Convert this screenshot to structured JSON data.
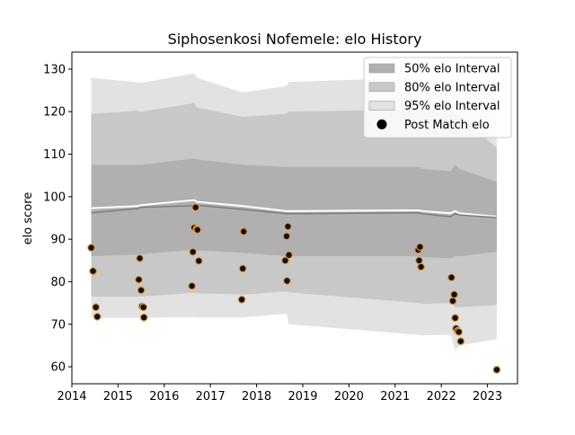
{
  "chart_data": {
    "type": "line",
    "title": "Siphosenkosi Nofemele: elo History",
    "xlabel": "",
    "ylabel": "elo score",
    "xlim": [
      2014.0,
      2023.65
    ],
    "ylim": [
      56,
      134
    ],
    "xticks": [
      2014,
      2015,
      2016,
      2017,
      2018,
      2019,
      2020,
      2021,
      2022,
      2023
    ],
    "yticks": [
      60,
      70,
      80,
      90,
      100,
      110,
      120,
      130
    ],
    "grid": false,
    "legend_position": "top-right",
    "legend": [
      {
        "label": "50% elo Interval",
        "kind": "patch",
        "color": "#b0b0b0"
      },
      {
        "label": "80% elo Interval",
        "kind": "patch",
        "color": "#c8c8c8"
      },
      {
        "label": "95% elo Interval",
        "kind": "patch",
        "color": "#e2e2e2"
      },
      {
        "label": "Post Match elo",
        "kind": "marker",
        "color": "#000000"
      }
    ],
    "interval_x": [
      2014.42,
      2015.42,
      2015.5,
      2016.65,
      2016.7,
      2017.7,
      2018.65,
      2018.7,
      2021.5,
      2021.6,
      2022.2,
      2022.3,
      2022.4,
      2023.2
    ],
    "bands": [
      {
        "name": "95% elo Interval",
        "color": "#e2e2e2",
        "upper": [
          128,
          126.9,
          126.8,
          129,
          128,
          124.5,
          126,
          127,
          128,
          127.8,
          126.5,
          126.3,
          126.2,
          126.3
        ],
        "lower": [
          71.5,
          71.5,
          71.5,
          71.7,
          71.6,
          71.6,
          72.5,
          70,
          67.5,
          67.4,
          67.5,
          64,
          65,
          66.5
        ]
      },
      {
        "name": "80% elo Interval",
        "color": "#c8c8c8",
        "upper": [
          119.5,
          120.2,
          120,
          122,
          121,
          118.8,
          119.5,
          120,
          120.5,
          120,
          119.5,
          119.5,
          119,
          111.5
        ],
        "lower": [
          76.5,
          76.5,
          76.5,
          77.4,
          77.3,
          77,
          77.7,
          77.5,
          75,
          74.8,
          75,
          74,
          74,
          74.5
        ]
      },
      {
        "name": "50% elo Interval",
        "color": "#b0b0b0",
        "upper": [
          107.5,
          107.5,
          107.5,
          109,
          108.8,
          107.5,
          107,
          107,
          107,
          106.5,
          106,
          107.5,
          106.5,
          103.5
        ],
        "lower": [
          86,
          86.4,
          86.5,
          87.5,
          87.4,
          86.8,
          86,
          86,
          86,
          85.8,
          85.5,
          86,
          86,
          87
        ]
      }
    ],
    "mean_line": [
      96.2,
      97.2,
      97.5,
      97.9,
      98,
      97,
      96,
      96,
      96.2,
      96,
      95.3,
      96,
      95.7,
      95.1
    ],
    "upper_line": [
      97.3,
      97.8,
      98,
      99.2,
      98.8,
      97.8,
      96.6,
      96.6,
      96.8,
      96.6,
      96.1,
      96.6,
      96.1,
      95.3
    ],
    "post_match_elo": {
      "x": [
        2014.42,
        2014.46,
        2014.52,
        2014.55,
        2015.45,
        2015.47,
        2015.5,
        2015.52,
        2015.55,
        2015.56,
        2016.6,
        2016.62,
        2016.65,
        2016.68,
        2016.7,
        2016.72,
        2016.75,
        2017.68,
        2017.7,
        2017.72,
        2018.62,
        2018.65,
        2018.66,
        2018.68,
        2018.7,
        2021.5,
        2021.52,
        2021.54,
        2021.56,
        2022.22,
        2022.25,
        2022.28,
        2022.3,
        2022.32,
        2022.35,
        2022.38,
        2022.42,
        2023.2
      ],
      "y": [
        88,
        82.5,
        74,
        71.8,
        80.5,
        85.5,
        78,
        74.2,
        74,
        71.6,
        79,
        87,
        92.7,
        97.5,
        92.4,
        92.2,
        84.9,
        75.8,
        83.1,
        91.8,
        85,
        90.7,
        80.2,
        93,
        86.3,
        87.5,
        85,
        88.2,
        83.5,
        81,
        75.5,
        77,
        71.5,
        69,
        68.4,
        68.2,
        66,
        59.3
      ]
    }
  }
}
